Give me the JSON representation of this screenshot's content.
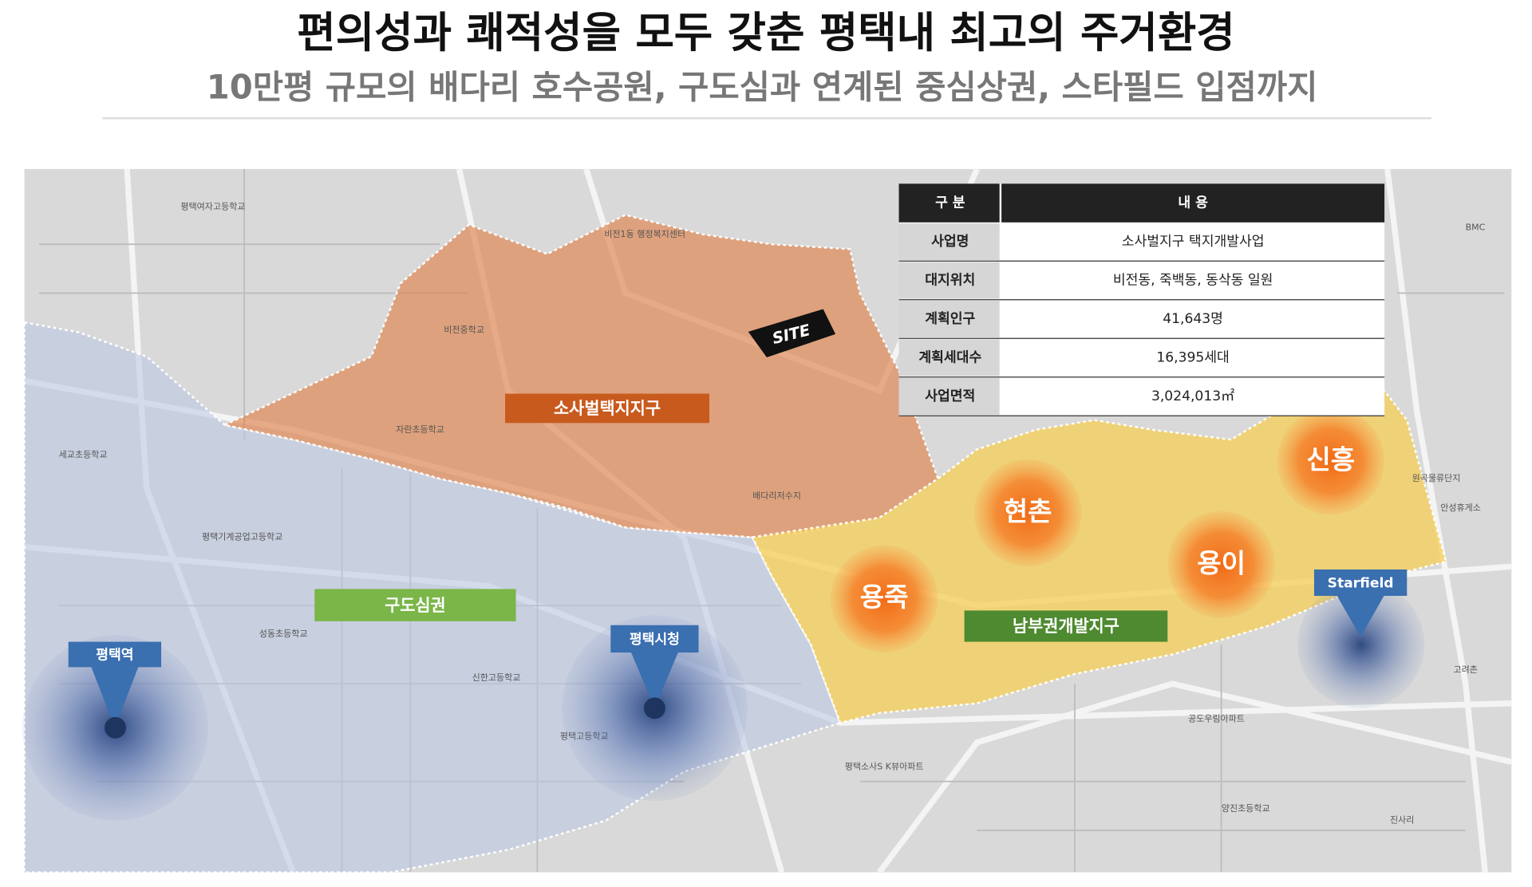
{
  "header": {
    "title": "편의성과 쾌적성을 모두 갖춘 평택내 최고의 주거환경",
    "subtitle": "10만평 규모의 배다리 호수공원, 구도심과 연계된 중심상권, 스타필드 입점까지"
  },
  "table": {
    "header": [
      "구 분",
      "내 용"
    ],
    "rows": [
      [
        "사업명",
        "소사벌지구 택지개발사업"
      ],
      [
        "대지위치",
        "비전동, 죽백동, 동삭동 일원"
      ],
      [
        "계획인구",
        "41,643명"
      ],
      [
        "계획세대수",
        "16,395세대"
      ],
      [
        "사업면적",
        "3,024,013㎡"
      ]
    ]
  },
  "map": {
    "site": "SITE",
    "zones": [
      "소사벌택지지구",
      "구도심권",
      "남부권개발지구"
    ],
    "areas": [
      "용죽",
      "현촌",
      "용이",
      "신흥"
    ],
    "markers": [
      "평택역",
      "평택시청",
      "Starfield"
    ],
    "labels": [
      "평택여자고등학교",
      "비전1동 행정복지센터",
      "비전중학교",
      "배다리저수지",
      "자란초등학교",
      "세교초등학교",
      "평택기계공업고등학교",
      "신한고등학교",
      "평택고등학교",
      "성동초등학교",
      "진사리",
      "BMC",
      "안성휴게소",
      "공도우림아파트",
      "평택소사S K뷰아파트",
      "원곡물류단지",
      "고려촌",
      "양진초등학교"
    ]
  }
}
